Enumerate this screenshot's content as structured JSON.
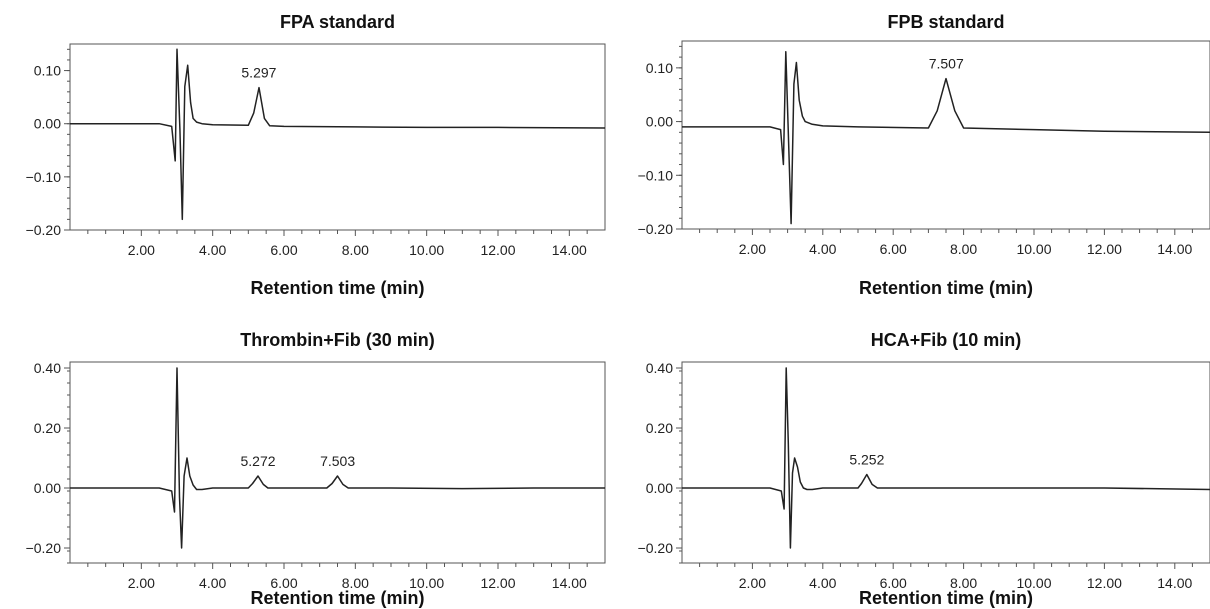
{
  "chart_data": [
    {
      "type": "line",
      "title": "FPA standard",
      "xlabel": "Retention time (min)",
      "ylabel": "",
      "xlim": [
        0,
        15
      ],
      "ylim": [
        -0.2,
        0.15
      ],
      "xticks": [
        2,
        4,
        6,
        8,
        10,
        12,
        14
      ],
      "xtick_labels": [
        "2.00",
        "4.00",
        "6.00",
        "8.00",
        "10.00",
        "12.00",
        "14.00"
      ],
      "yticks": [
        0.1,
        0.0,
        -0.1,
        -0.2
      ],
      "ytick_labels": [
        "0.10",
        "0.00",
        "−0.10",
        "−0.20"
      ],
      "series": [
        {
          "color": "#222222",
          "x": [
            0,
            2.5,
            2.85,
            2.95,
            3.0,
            3.08,
            3.15,
            3.22,
            3.3,
            3.38,
            3.45,
            3.55,
            3.7,
            4.0,
            5.0,
            5.15,
            5.3,
            5.45,
            5.6,
            6.0,
            8.0,
            10.0,
            12.0,
            15.0
          ],
          "y": [
            0.0,
            0.0,
            -0.005,
            -0.07,
            0.14,
            -0.01,
            -0.18,
            0.07,
            0.11,
            0.04,
            0.01,
            0.003,
            0.0,
            -0.002,
            -0.003,
            0.02,
            0.068,
            0.01,
            -0.004,
            -0.005,
            -0.006,
            -0.007,
            -0.007,
            -0.008
          ]
        }
      ],
      "annotations": [
        {
          "text": "5.297",
          "x": 5.297,
          "y": 0.068
        }
      ]
    },
    {
      "type": "line",
      "title": "FPB standard",
      "xlabel": "Retention time (min)",
      "ylabel": "",
      "xlim": [
        0,
        15
      ],
      "ylim": [
        -0.2,
        0.15
      ],
      "xticks": [
        2,
        4,
        6,
        8,
        10,
        12,
        14
      ],
      "xtick_labels": [
        "2.00",
        "4.00",
        "6.00",
        "8.00",
        "10.00",
        "12.00",
        "14.00"
      ],
      "yticks": [
        0.1,
        0.0,
        -0.1,
        -0.2
      ],
      "ytick_labels": [
        "0.10",
        "0.00",
        "−0.10",
        "−0.20"
      ],
      "series": [
        {
          "color": "#222222",
          "x": [
            0,
            2.5,
            2.8,
            2.88,
            2.95,
            3.02,
            3.1,
            3.18,
            3.25,
            3.33,
            3.42,
            3.5,
            3.7,
            4.0,
            5.0,
            7.0,
            7.25,
            7.5,
            7.75,
            8.0,
            10.0,
            12.0,
            15.0
          ],
          "y": [
            -0.01,
            -0.01,
            -0.015,
            -0.08,
            0.13,
            -0.02,
            -0.19,
            0.07,
            0.11,
            0.04,
            0.01,
            0.0,
            -0.005,
            -0.008,
            -0.01,
            -0.012,
            0.02,
            0.08,
            0.02,
            -0.012,
            -0.015,
            -0.018,
            -0.02
          ]
        }
      ],
      "annotations": [
        {
          "text": "7.507",
          "x": 7.507,
          "y": 0.08
        }
      ]
    },
    {
      "type": "line",
      "title": "Thrombin+Fib (30 min)",
      "xlabel": "Retention time (min)",
      "ylabel": "",
      "xlim": [
        0,
        15
      ],
      "ylim": [
        -0.25,
        0.42
      ],
      "xticks": [
        2,
        4,
        6,
        8,
        10,
        12,
        14
      ],
      "xtick_labels": [
        "2.00",
        "4.00",
        "6.00",
        "8.00",
        "10.00",
        "12.00",
        "14.00"
      ],
      "yticks": [
        0.4,
        0.2,
        0.0,
        -0.2
      ],
      "ytick_labels": [
        "0.40",
        "0.20",
        "0.00",
        "−0.20"
      ],
      "series": [
        {
          "color": "#222222",
          "x": [
            0,
            2.5,
            2.85,
            2.93,
            3.0,
            3.07,
            3.13,
            3.2,
            3.28,
            3.36,
            3.45,
            3.55,
            3.7,
            4.0,
            5.0,
            5.12,
            5.27,
            5.42,
            5.55,
            6.0,
            7.2,
            7.35,
            7.5,
            7.65,
            7.8,
            9.0,
            11.0,
            13.0,
            15.0
          ],
          "y": [
            0.0,
            0.0,
            -0.01,
            -0.08,
            0.4,
            -0.03,
            -0.2,
            0.04,
            0.1,
            0.04,
            0.01,
            -0.005,
            -0.005,
            0.0,
            0.0,
            0.015,
            0.04,
            0.012,
            0.0,
            0.0,
            0.0,
            0.015,
            0.04,
            0.012,
            0.0,
            0.0,
            -0.002,
            0.0,
            0.0
          ]
        }
      ],
      "annotations": [
        {
          "text": "5.272",
          "x": 5.272,
          "y": 0.04
        },
        {
          "text": "7.503",
          "x": 7.503,
          "y": 0.04
        }
      ]
    },
    {
      "type": "line",
      "title": "HCA+Fib (10 min)",
      "xlabel": "Retention time (min)",
      "ylabel": "",
      "xlim": [
        0,
        15
      ],
      "ylim": [
        -0.25,
        0.42
      ],
      "xticks": [
        2,
        4,
        6,
        8,
        10,
        12,
        14
      ],
      "xtick_labels": [
        "2.00",
        "4.00",
        "6.00",
        "8.00",
        "10.00",
        "12.00",
        "14.00"
      ],
      "yticks": [
        0.4,
        0.2,
        0.0,
        -0.2
      ],
      "ytick_labels": [
        "0.40",
        "0.20",
        "0.00",
        "−0.20"
      ],
      "series": [
        {
          "color": "#222222",
          "x": [
            0,
            2.5,
            2.82,
            2.9,
            2.96,
            3.02,
            3.08,
            3.14,
            3.2,
            3.28,
            3.36,
            3.45,
            3.55,
            3.7,
            4.0,
            5.0,
            5.1,
            5.25,
            5.4,
            5.55,
            6.0,
            8.0,
            10.0,
            12.0,
            15.0
          ],
          "y": [
            0.0,
            0.0,
            -0.01,
            -0.07,
            0.4,
            0.15,
            -0.2,
            0.05,
            0.1,
            0.07,
            0.02,
            0.0,
            -0.005,
            -0.005,
            0.0,
            0.0,
            0.015,
            0.045,
            0.012,
            0.0,
            0.0,
            0.0,
            0.0,
            0.0,
            -0.005
          ]
        }
      ],
      "annotations": [
        {
          "text": "5.252",
          "x": 5.252,
          "y": 0.045
        }
      ]
    }
  ]
}
